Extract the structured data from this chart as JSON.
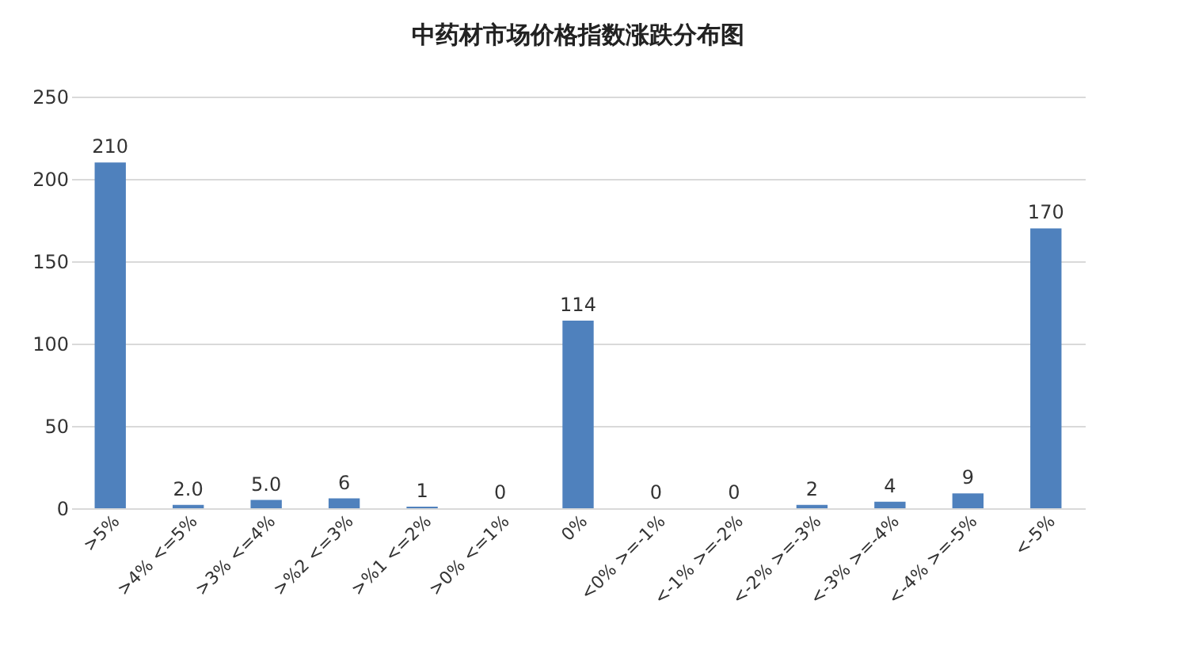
{
  "chart_data": {
    "type": "bar",
    "title": "中药材市场价格指数涨跌分布图",
    "categories": [
      ">5%",
      ">4% <=5%",
      ">3% <=4%",
      ">%2 <=3%",
      ">%1 <=2%",
      ">0% <=1%",
      "0%",
      "<0% >=-1%",
      "<-1% >=-2%",
      "<-2% >=-3%",
      "<-3% >=-4%",
      "<-4% >=-5%",
      "<-5%"
    ],
    "values": [
      210,
      2,
      5,
      6,
      1,
      0,
      114,
      0,
      0,
      2,
      4,
      9,
      170
    ],
    "value_labels": [
      "210",
      "2.0",
      "5.0",
      "6",
      "1",
      "0",
      "114",
      "0",
      "0",
      "2",
      "4",
      "9",
      "170"
    ],
    "color": "#4f81bd",
    "ylim": [
      0,
      250
    ],
    "yticks": [
      0,
      50,
      100,
      150,
      200,
      250
    ],
    "grid": "y"
  }
}
